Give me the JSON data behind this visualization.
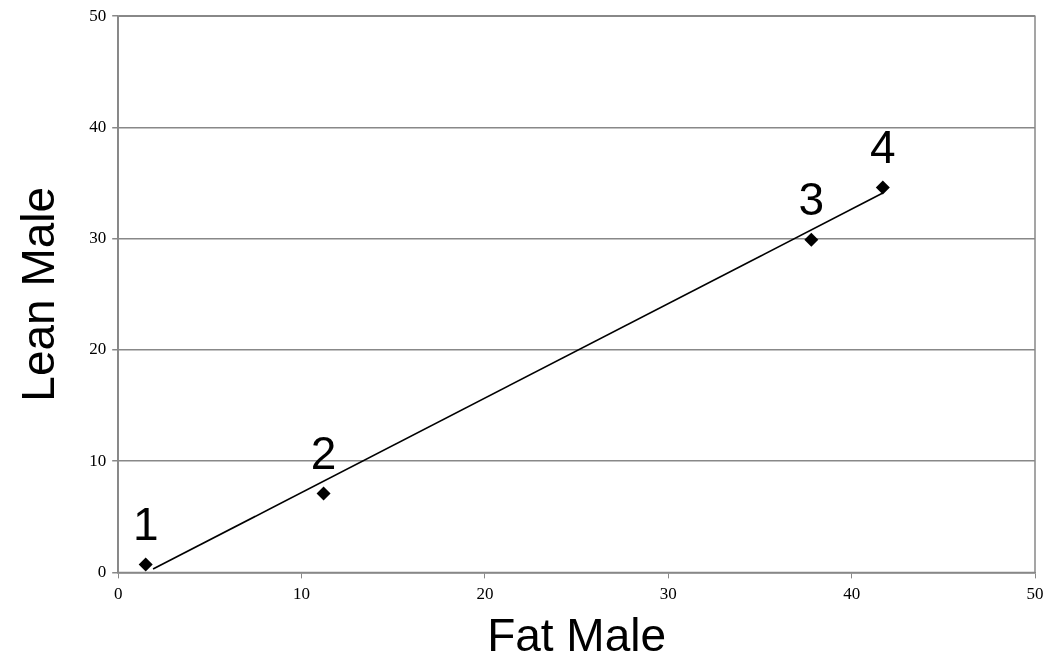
{
  "chart_data": {
    "type": "scatter",
    "xlabel": "Fat Male",
    "ylabel": "Lean Male",
    "xlim": [
      0,
      50
    ],
    "xticks": [
      0,
      10,
      20,
      30,
      40,
      50
    ],
    "ylim": [
      0,
      50
    ],
    "yticks": [
      0,
      10,
      20,
      30,
      40,
      50
    ],
    "grid": "y",
    "legend": false,
    "marker": "diamond",
    "series": [
      {
        "type": "scatter",
        "color": "#000000",
        "x": [
          1.5,
          11.2,
          37.8,
          41.7
        ],
        "values": [
          0.7,
          7.1,
          29.9,
          34.6
        ]
      },
      {
        "type": "line",
        "color": "#000000",
        "marker": "none",
        "line_style": "solid",
        "x": [
          1.9,
          41.7
        ],
        "values": [
          0.3,
          34.1
        ]
      }
    ],
    "annotations": [
      {
        "text": "1",
        "x": 1.5,
        "y": 0.7
      },
      {
        "text": "2",
        "x": 11.2,
        "y": 7.1
      },
      {
        "text": "3",
        "x": 37.8,
        "y": 29.9
      },
      {
        "text": "4",
        "x": 41.7,
        "y": 34.6
      }
    ]
  }
}
